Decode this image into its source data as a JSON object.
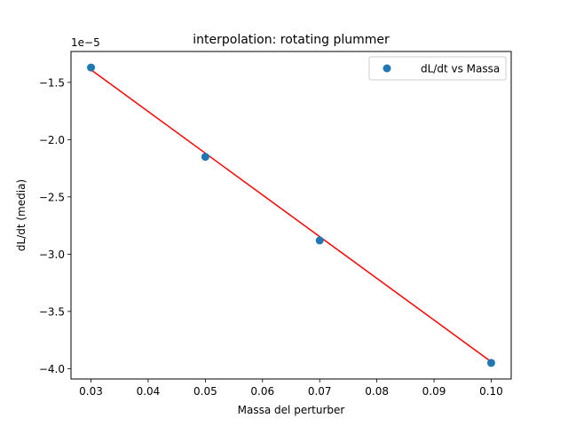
{
  "chart_data": {
    "type": "scatter",
    "title": "interpolation: rotating plummer",
    "xlabel": "Massa del perturber",
    "ylabel": "dL/dt (media)",
    "offset_text": "1e−5",
    "xlim": [
      0.0265,
      0.1035
    ],
    "ylim": [
      -4.09,
      -1.23
    ],
    "x_ticks": [
      0.03,
      0.04,
      0.05,
      0.06,
      0.07,
      0.08,
      0.09,
      0.1
    ],
    "x_tick_labels": [
      "0.03",
      "0.04",
      "0.05",
      "0.06",
      "0.07",
      "0.08",
      "0.09",
      "0.10"
    ],
    "y_ticks": [
      -1.5,
      -2.0,
      -2.5,
      -3.0,
      -3.5,
      -4.0
    ],
    "y_tick_labels": [
      "−1.5",
      "−2.0",
      "−2.5",
      "−3.0",
      "−3.5",
      "−4.0"
    ],
    "grid": false,
    "legend_position": "top-right",
    "series": [
      {
        "name": "dL/dt vs Massa",
        "kind": "scatter",
        "color": "#1f77b4",
        "x": [
          0.03,
          0.05,
          0.07,
          0.1
        ],
        "y": [
          -1.37,
          -2.15,
          -2.88,
          -3.95
        ]
      },
      {
        "kind": "line",
        "color": "#ff0000",
        "x": [
          0.03,
          0.1
        ],
        "y": [
          -1.39,
          -3.94
        ]
      }
    ]
  }
}
